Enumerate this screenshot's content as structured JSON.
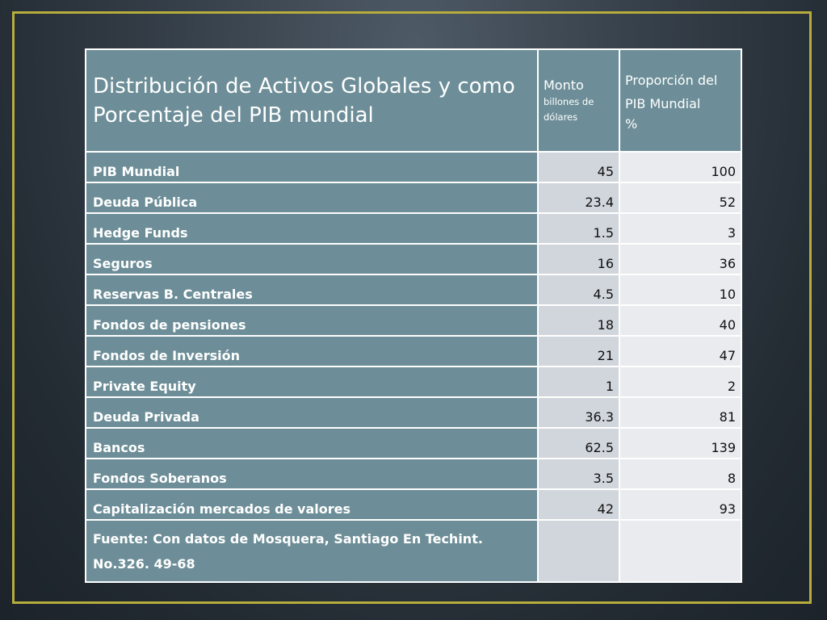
{
  "header": {
    "title": "Distribución de Activos Globales  y como Porcentaje del PIB mundial",
    "monto_label": "Monto",
    "monto_sublabel": "billones de dólares",
    "proporcion_label": "Proporción del PIB Mundial",
    "proporcion_unit": "%"
  },
  "rows": [
    {
      "label": "PIB Mundial",
      "monto": "45",
      "proporcion": "100"
    },
    {
      "label": "Deuda Pública",
      "monto": "23.4",
      "proporcion": "52"
    },
    {
      "label": "Hedge Funds",
      "monto": "1.5",
      "proporcion": "3"
    },
    {
      "label": "Seguros",
      "monto": "16",
      "proporcion": "36"
    },
    {
      "label": "Reservas B. Centrales",
      "monto": "4.5",
      "proporcion": "10"
    },
    {
      "label": "Fondos de pensiones",
      "monto": "18",
      "proporcion": "40"
    },
    {
      "label": "Fondos de Inversión",
      "monto": "21",
      "proporcion": "47"
    },
    {
      "label": "Private Equity",
      "monto": "1",
      "proporcion": "2"
    },
    {
      "label": "Deuda Privada",
      "monto": "36.3",
      "proporcion": "81"
    },
    {
      "label": "Bancos",
      "monto": "62.5",
      "proporcion": "139"
    },
    {
      "label": "Fondos Soberanos",
      "monto": "3.5",
      "proporcion": "8"
    },
    {
      "label": "Capitalización mercados de valores",
      "monto": "42",
      "proporcion": "93"
    }
  ],
  "source": "Fuente: Con datos de Mosquera, Santiago En Techint. No.326. 49-68",
  "colors": {
    "frame_border": "#b7ad3c",
    "label_cell": "#6d8e98",
    "monto_cell": "#d1d6dc",
    "proporcion_cell": "#e9ebee"
  }
}
